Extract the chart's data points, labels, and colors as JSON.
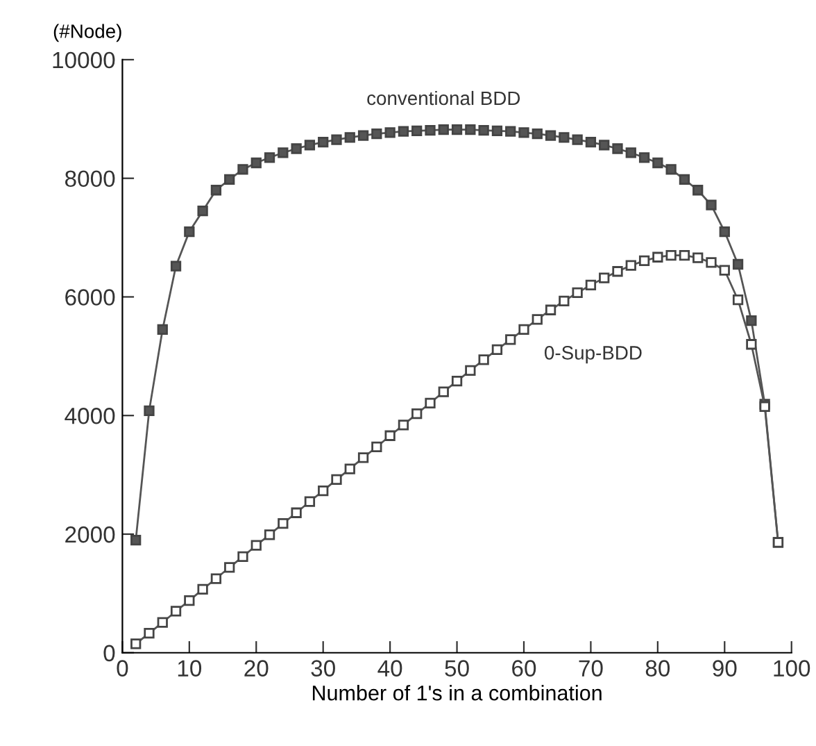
{
  "chart_data": {
    "type": "line",
    "xlabel": "Number of 1's in a combination",
    "ylabel": "(#Node)",
    "x": [
      2,
      4,
      6,
      8,
      10,
      12,
      14,
      16,
      18,
      20,
      22,
      24,
      26,
      28,
      30,
      32,
      34,
      36,
      38,
      40,
      42,
      44,
      46,
      48,
      50,
      52,
      54,
      56,
      58,
      60,
      62,
      64,
      66,
      68,
      70,
      72,
      74,
      76,
      78,
      80,
      82,
      84,
      86,
      88,
      90,
      92,
      94,
      96,
      98
    ],
    "series": [
      {
        "name": "conventional BDD",
        "color": "#555555",
        "marker": "square",
        "values": [
          1900,
          4080,
          5450,
          6520,
          7100,
          7450,
          7800,
          7980,
          8150,
          8260,
          8350,
          8430,
          8500,
          8560,
          8610,
          8650,
          8690,
          8720,
          8750,
          8770,
          8790,
          8800,
          8810,
          8820,
          8820,
          8820,
          8810,
          8800,
          8790,
          8770,
          8750,
          8720,
          8690,
          8650,
          8610,
          8560,
          8500,
          8430,
          8350,
          8260,
          8150,
          7980,
          7800,
          7550,
          7100,
          6550,
          5600,
          4190,
          1860
        ]
      },
      {
        "name": "0-Sup-BDD",
        "color": "#ffffff",
        "marker": "square",
        "values": [
          150,
          330,
          510,
          700,
          880,
          1070,
          1250,
          1440,
          1620,
          1810,
          1990,
          2180,
          2360,
          2550,
          2730,
          2920,
          3100,
          3290,
          3470,
          3660,
          3840,
          4030,
          4210,
          4400,
          4580,
          4760,
          4940,
          5110,
          5280,
          5450,
          5620,
          5780,
          5930,
          6070,
          6200,
          6320,
          6430,
          6530,
          6610,
          6670,
          6700,
          6700,
          6660,
          6580,
          6450,
          5950,
          5200,
          4150,
          1860
        ]
      }
    ],
    "xlim": [
      0,
      100
    ],
    "xticks": [
      0,
      10,
      20,
      30,
      40,
      50,
      60,
      70,
      80,
      90,
      100
    ],
    "ylim": [
      0,
      10000
    ],
    "yticks": [
      0,
      2000,
      4000,
      6000,
      8000,
      10000
    ],
    "grid": false,
    "legend": false,
    "line_style": "solid"
  }
}
